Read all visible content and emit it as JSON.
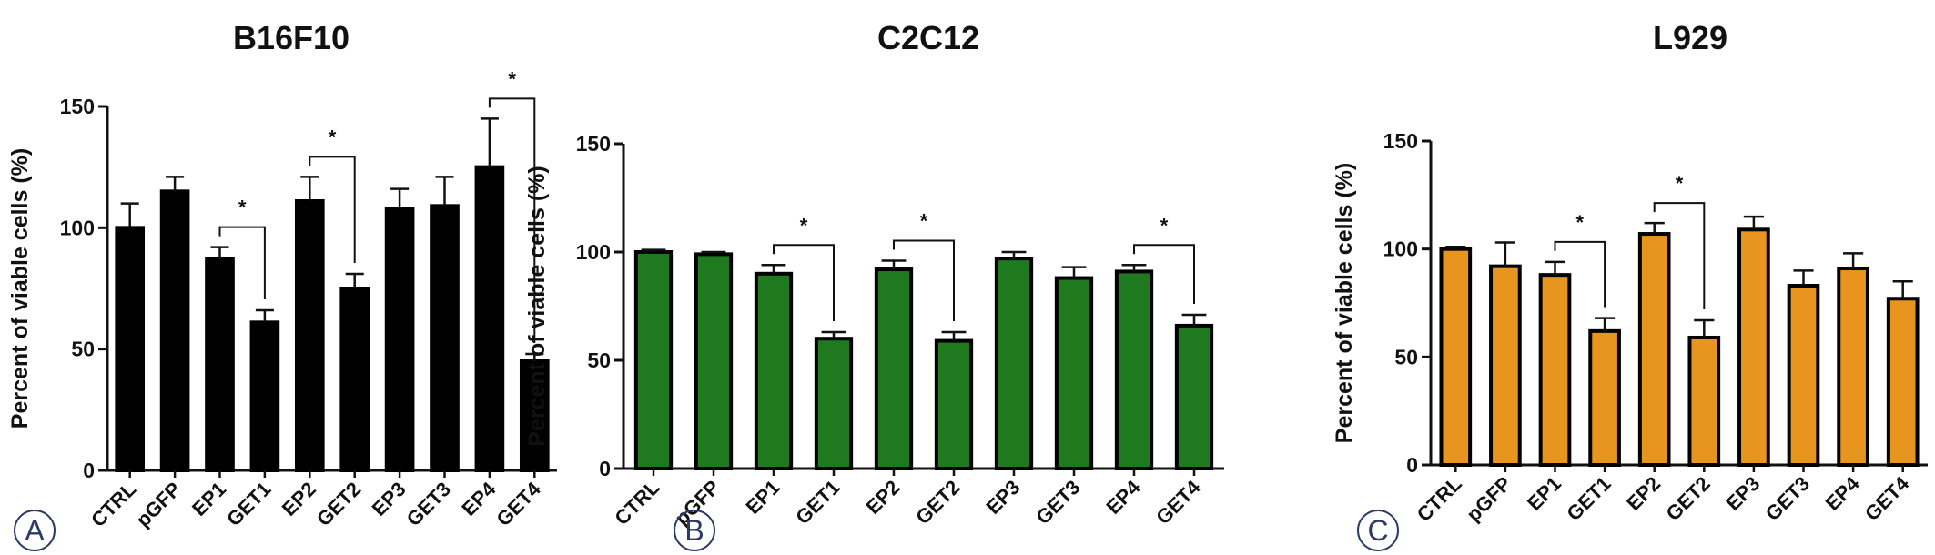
{
  "chart_data": [
    {
      "type": "bar",
      "panel_letter": "A",
      "title": "B16F10",
      "xlabel": "",
      "ylabel": "Percent of viable cells (%)",
      "ylim": [
        0,
        150
      ],
      "yticks": [
        0,
        50,
        100,
        150
      ],
      "categories": [
        "CTRL",
        "pGFP",
        "EP1",
        "GET1",
        "EP2",
        "GET2",
        "EP3",
        "GET3",
        "EP4",
        "GET4"
      ],
      "values": [
        100,
        115,
        87,
        61,
        111,
        75,
        108,
        109,
        125,
        45
      ],
      "errors": [
        10,
        6,
        5,
        5,
        10,
        6,
        8,
        12,
        20,
        3
      ],
      "bar_color": "#000000",
      "bar_edge": "#000000",
      "significance": [
        {
          "from": 2,
          "to": 3,
          "label": "*"
        },
        {
          "from": 4,
          "to": 5,
          "label": "*"
        },
        {
          "from": 8,
          "to": 9,
          "label": "*"
        }
      ]
    },
    {
      "type": "bar",
      "panel_letter": "B",
      "title": "C2C12",
      "xlabel": "",
      "ylabel": "Percent of viable cells (%)",
      "ylim": [
        0,
        150
      ],
      "yticks": [
        0,
        50,
        100,
        150
      ],
      "categories": [
        "CTRL",
        "pGFP",
        "EP1",
        "GET1",
        "EP2",
        "GET2",
        "EP3",
        "GET3",
        "EP4",
        "GET4"
      ],
      "values": [
        100,
        99,
        90,
        60,
        92,
        59,
        97,
        88,
        91,
        66
      ],
      "errors": [
        1,
        1,
        4,
        3,
        4,
        4,
        3,
        5,
        3,
        5
      ],
      "bar_color": "#1f7a1f",
      "bar_edge": "#000000",
      "significance": [
        {
          "from": 2,
          "to": 3,
          "label": "*"
        },
        {
          "from": 4,
          "to": 5,
          "label": "*"
        },
        {
          "from": 8,
          "to": 9,
          "label": "*"
        }
      ]
    },
    {
      "type": "bar",
      "panel_letter": "C",
      "title": "L929",
      "xlabel": "",
      "ylabel": "Percent of viable cells (%)",
      "ylim": [
        0,
        150
      ],
      "yticks": [
        0,
        50,
        100,
        150
      ],
      "categories": [
        "CTRL",
        "pGFP",
        "EP1",
        "GET1",
        "EP2",
        "GET2",
        "EP3",
        "GET3",
        "EP4",
        "GET4"
      ],
      "values": [
        100,
        92,
        88,
        62,
        107,
        59,
        109,
        83,
        91,
        77
      ],
      "errors": [
        1,
        11,
        6,
        6,
        5,
        8,
        6,
        7,
        7,
        8
      ],
      "bar_color": "#e8951f",
      "bar_edge": "#000000",
      "significance": [
        {
          "from": 2,
          "to": 3,
          "label": "*"
        },
        {
          "from": 4,
          "to": 5,
          "label": "*"
        }
      ]
    }
  ]
}
